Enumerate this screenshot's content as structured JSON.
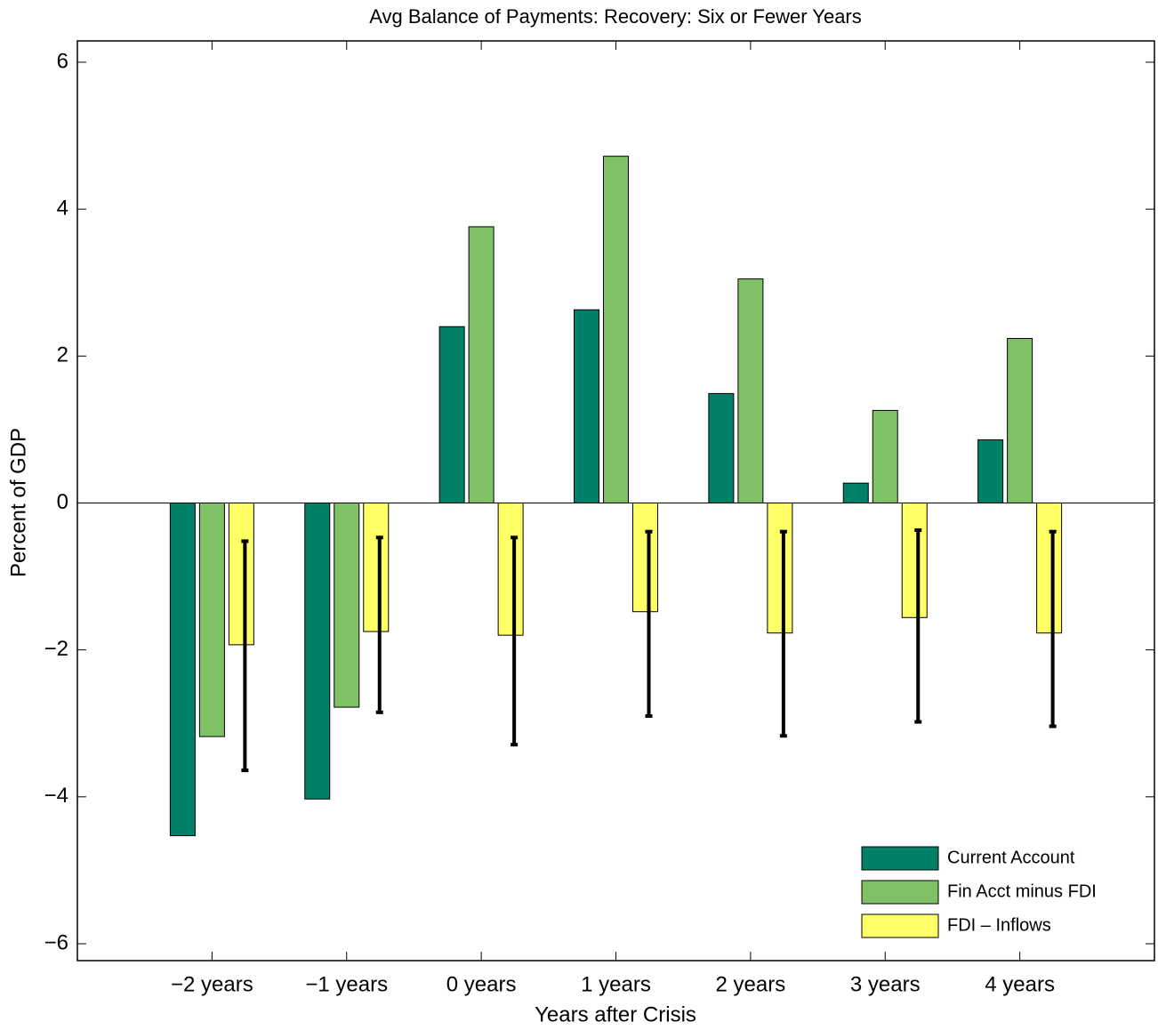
{
  "chart_data": {
    "type": "bar",
    "title": "Avg Balance of Payments: Recovery: Six or Fewer Years",
    "x_label": "Years after Crisis",
    "y_label": "Percent of GDP",
    "categories": [
      "−2 years",
      "−1 years",
      "0 years",
      "1 years",
      "2 years",
      "3 years",
      "4 years"
    ],
    "series": [
      {
        "name": "Current Account",
        "color": "#008066",
        "values": [
          -4.53,
          -4.03,
          2.4,
          2.63,
          1.49,
          0.27,
          0.86
        ]
      },
      {
        "name": "Fin Acct minus FDI",
        "color": "#80c166",
        "values": [
          -3.18,
          -2.78,
          3.76,
          4.72,
          3.05,
          1.26,
          2.24
        ]
      },
      {
        "name": "FDI – Inflows",
        "color": "#ffff66",
        "values": [
          -1.93,
          -1.75,
          -1.8,
          -1.48,
          -1.77,
          -1.56,
          -1.77
        ],
        "error_low": [
          -3.64,
          -2.85,
          -3.29,
          -2.9,
          -3.17,
          -2.98,
          -3.04
        ],
        "error_high": [
          -0.52,
          -0.47,
          -0.47,
          -0.39,
          -0.39,
          -0.37,
          -0.39
        ]
      }
    ],
    "ylim": [
      -6.23,
      6.29
    ],
    "yticks": [
      {
        "value": -6,
        "label": "−6"
      },
      {
        "value": -4,
        "label": "−4"
      },
      {
        "value": -2,
        "label": "−2"
      },
      0,
      2,
      4,
      6
    ],
    "grid": false,
    "legend": "lower right"
  }
}
